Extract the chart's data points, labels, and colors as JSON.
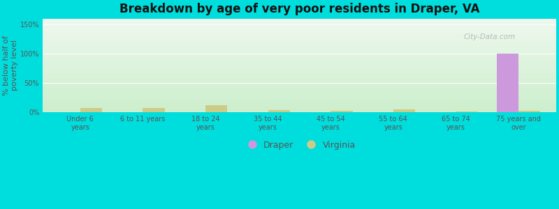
{
  "title": "Breakdown by age of very poor residents in Draper, VA",
  "ylabel": "% below half of\npoverty level",
  "categories": [
    "Under 6\nyears",
    "6 to 11 years",
    "18 to 24\nyears",
    "35 to 44\nyears",
    "45 to 54\nyears",
    "55 to 64\nyears",
    "65 to 74\nyears",
    "75 years and\nover"
  ],
  "draper_values": [
    0,
    0,
    0,
    0,
    0,
    0,
    0,
    100
  ],
  "virginia_values": [
    7,
    7,
    12,
    4,
    3,
    5,
    2,
    3
  ],
  "draper_color": "#cc99dd",
  "virginia_color": "#cccc88",
  "ylim": [
    0,
    160
  ],
  "yticks": [
    0,
    50,
    100,
    150
  ],
  "ytick_labels": [
    "0%",
    "50%",
    "100%",
    "150%"
  ],
  "fig_bg": "#00dddd",
  "chart_bg_top": "#cceecc",
  "chart_bg_bottom": "#eef8ee",
  "bar_width": 0.35,
  "legend_labels": [
    "Draper",
    "Virginia"
  ],
  "watermark": "City-Data.com",
  "title_fontsize": 12,
  "tick_fontsize": 7,
  "ylabel_fontsize": 8
}
